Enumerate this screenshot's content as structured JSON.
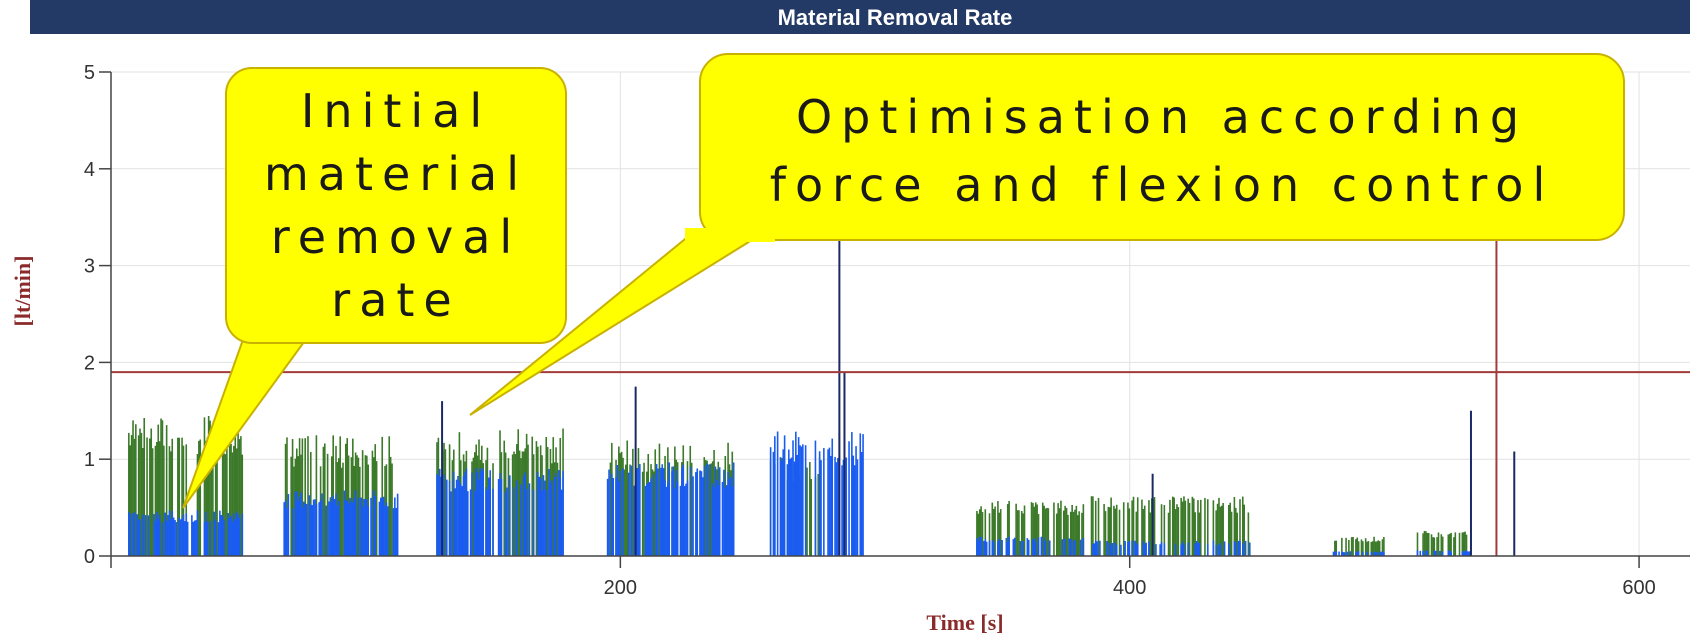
{
  "chart_data": {
    "type": "bar",
    "title": "Material Removal Rate",
    "xlabel": "Time [s]",
    "ylabel": "[lt/min]",
    "xlim": [
      0,
      620
    ],
    "ylim": [
      0,
      5
    ],
    "x_ticks": [
      200,
      400,
      600
    ],
    "y_ticks": [
      0,
      1,
      2,
      3,
      4,
      5
    ],
    "grid": true,
    "limit_line": {
      "y": 1.9,
      "color": "#a33a3a"
    },
    "marker_line": {
      "x": 544,
      "color": "#a33a3a"
    },
    "series": [
      {
        "color": "#3c7a2a",
        "segments": [
          {
            "x0": 7,
            "x1": 52,
            "value": 1.45,
            "density": 0.6
          },
          {
            "x0": 68,
            "x1": 113,
            "value": 1.25,
            "density": 0.6
          },
          {
            "x0": 128,
            "x1": 178,
            "value": 1.33,
            "density": 0.6
          },
          {
            "x0": 195,
            "x1": 245,
            "value": 1.2,
            "density": 0.6
          },
          {
            "x0": 259,
            "x1": 280,
            "value": 1.05,
            "density": 0.5
          },
          {
            "x0": 340,
            "x1": 382,
            "value": 0.58,
            "density": 0.6
          },
          {
            "x0": 385,
            "x1": 448,
            "value": 0.62,
            "density": 0.6
          },
          {
            "x0": 480,
            "x1": 500,
            "value": 0.2,
            "density": 0.6
          },
          {
            "x0": 513,
            "x1": 534,
            "value": 0.26,
            "density": 0.6
          }
        ]
      },
      {
        "color": "#1a5cf0",
        "segments": [
          {
            "x0": 7,
            "x1": 52,
            "value": 0.48,
            "density": 0.7
          },
          {
            "x0": 68,
            "x1": 113,
            "value": 0.68,
            "density": 0.7
          },
          {
            "x0": 128,
            "x1": 178,
            "value": 0.92,
            "density": 0.7
          },
          {
            "x0": 195,
            "x1": 245,
            "value": 0.97,
            "density": 0.7
          },
          {
            "x0": 259,
            "x1": 296,
            "value": 1.3,
            "density": 0.6
          },
          {
            "x0": 340,
            "x1": 382,
            "value": 0.2,
            "density": 0.5
          },
          {
            "x0": 385,
            "x1": 448,
            "value": 0.16,
            "density": 0.5
          },
          {
            "x0": 480,
            "x1": 500,
            "value": 0.05,
            "density": 0.5
          },
          {
            "x0": 513,
            "x1": 534,
            "value": 0.06,
            "density": 0.5
          }
        ]
      },
      {
        "color": "#1b2a66",
        "spikes": [
          {
            "x": 130,
            "value": 1.6
          },
          {
            "x": 206,
            "value": 1.75
          },
          {
            "x": 286,
            "value": 3.3
          },
          {
            "x": 288,
            "value": 1.9
          },
          {
            "x": 409,
            "value": 0.85
          },
          {
            "x": 534,
            "value": 1.5
          },
          {
            "x": 551,
            "value": 1.08
          }
        ]
      }
    ],
    "annotations": [
      {
        "lines": [
          "Initial",
          "material",
          "removal",
          "rate"
        ]
      },
      {
        "lines": [
          "Optimisation according",
          "force and flexion control"
        ]
      }
    ]
  }
}
